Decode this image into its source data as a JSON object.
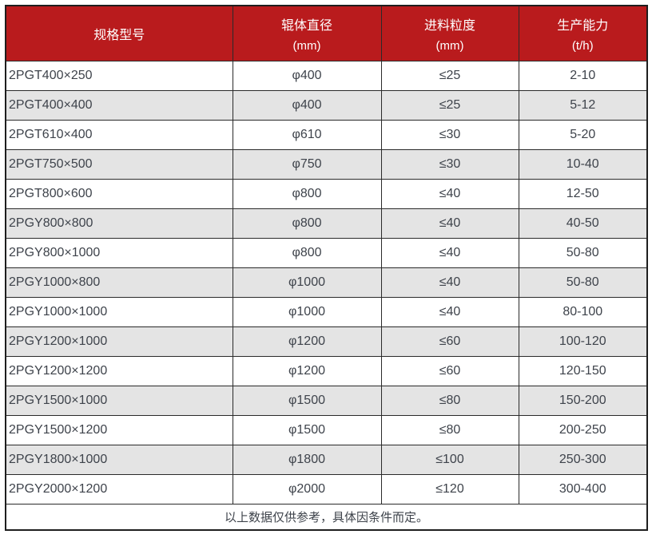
{
  "colors": {
    "header_bg": "#b91b1d",
    "header_text": "#ffffff",
    "row_alt": "#e4e4e4",
    "border": "#2a2a2a",
    "border_strong": "#1e1e1e",
    "text": "#3e434b"
  },
  "table": {
    "columns": [
      {
        "title": "规格型号",
        "unit": ""
      },
      {
        "title": "辊体直径",
        "unit": "(mm)"
      },
      {
        "title": "进料粒度",
        "unit": "(mm)"
      },
      {
        "title": "生产能力",
        "unit": "(t/h)"
      }
    ],
    "rows": [
      [
        "2PGT400×250",
        "φ400",
        "≤25",
        "2-10"
      ],
      [
        "2PGT400×400",
        "φ400",
        "≤25",
        "5-12"
      ],
      [
        "2PGT610×400",
        "φ610",
        "≤30",
        "5-20"
      ],
      [
        "2PGT750×500",
        "φ750",
        "≤30",
        "10-40"
      ],
      [
        "2PGT800×600",
        "φ800",
        "≤40",
        "12-50"
      ],
      [
        "2PGY800×800",
        "φ800",
        "≤40",
        "40-50"
      ],
      [
        "2PGY800×1000",
        "φ800",
        "≤40",
        "50-80"
      ],
      [
        "2PGY1000×800",
        "φ1000",
        "≤40",
        "50-80"
      ],
      [
        "2PGY1000×1000",
        "φ1000",
        "≤40",
        "80-100"
      ],
      [
        "2PGY1200×1000",
        "φ1200",
        "≤60",
        "100-120"
      ],
      [
        "2PGY1200×1200",
        "φ1200",
        "≤60",
        "120-150"
      ],
      [
        "2PGY1500×1000",
        "φ1500",
        "≤80",
        "150-200"
      ],
      [
        "2PGY1500×1200",
        "φ1500",
        "≤80",
        "200-250"
      ],
      [
        "2PGY1800×1000",
        "φ1800",
        "≤100",
        "250-300"
      ],
      [
        "2PGY2000×1200",
        "φ2000",
        "≤120",
        "300-400"
      ]
    ],
    "footnote": "以上数据仅供参考，具体因条件而定。"
  },
  "chart_data": {
    "type": "table",
    "columns": [
      "规格型号",
      "辊体直径 (mm)",
      "进料粒度 (mm)",
      "生产能力 (t/h)"
    ],
    "rows": [
      [
        "2PGT400×250",
        "φ400",
        "≤25",
        "2-10"
      ],
      [
        "2PGT400×400",
        "φ400",
        "≤25",
        "5-12"
      ],
      [
        "2PGT610×400",
        "φ610",
        "≤30",
        "5-20"
      ],
      [
        "2PGT750×500",
        "φ750",
        "≤30",
        "10-40"
      ],
      [
        "2PGT800×600",
        "φ800",
        "≤40",
        "12-50"
      ],
      [
        "2PGY800×800",
        "φ800",
        "≤40",
        "40-50"
      ],
      [
        "2PGY800×1000",
        "φ800",
        "≤40",
        "50-80"
      ],
      [
        "2PGY1000×800",
        "φ1000",
        "≤40",
        "50-80"
      ],
      [
        "2PGY1000×1000",
        "φ1000",
        "≤40",
        "80-100"
      ],
      [
        "2PGY1200×1000",
        "φ1200",
        "≤60",
        "100-120"
      ],
      [
        "2PGY1200×1200",
        "φ1200",
        "≤60",
        "120-150"
      ],
      [
        "2PGY1500×1000",
        "φ1500",
        "≤80",
        "150-200"
      ],
      [
        "2PGY1500×1200",
        "φ1500",
        "≤80",
        "200-250"
      ],
      [
        "2PGY1800×1000",
        "φ1800",
        "≤100",
        "250-300"
      ],
      [
        "2PGY2000×1200",
        "φ2000",
        "≤120",
        "300-400"
      ]
    ],
    "footnote": "以上数据仅供参考，具体因条件而定。"
  }
}
